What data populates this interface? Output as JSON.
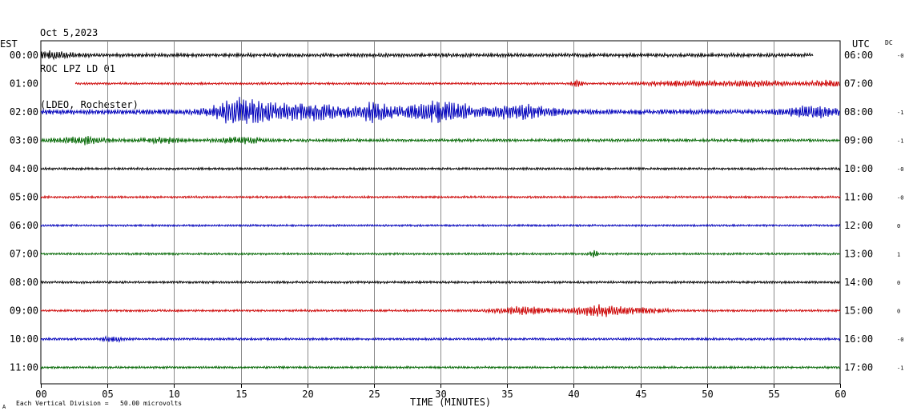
{
  "header": {
    "date": "Oct 5,2023",
    "station": "ROC LPZ LD 01",
    "network": "(LDEO, Rochester)"
  },
  "left_zone_label": "EST",
  "right_zone_label": "UTC",
  "dc_label": "DC",
  "footer": {
    "scale_note": "Each Vertical Division =   50.00 microvolts",
    "corner_mark": "A"
  },
  "chart_data": {
    "type": "line",
    "xlabel": "TIME (MINUTES)",
    "xlim": [
      0,
      60
    ],
    "x_ticks": [
      "00",
      "05",
      "10",
      "15",
      "20",
      "25",
      "30",
      "35",
      "40",
      "45",
      "50",
      "55",
      "60"
    ],
    "trace_colors": [
      "#000000",
      "#cc0000",
      "#0000bb",
      "#006600"
    ],
    "rows": [
      {
        "est": "00:00",
        "utc": "06:00",
        "dc": "-0",
        "start": 0,
        "end": 58,
        "amp": 2.5,
        "events": [
          {
            "at": 0.3,
            "width": 2,
            "amp": 4
          }
        ]
      },
      {
        "est": "01:00",
        "utc": "07:00",
        "dc": "",
        "start": 2.6,
        "end": 60,
        "amp": 1.5,
        "events": [
          {
            "at": 40.2,
            "width": 0.4,
            "amp": 5
          },
          {
            "at": 48.5,
            "width": 3,
            "amp": 3
          },
          {
            "at": 54,
            "width": 2.5,
            "amp": 3
          },
          {
            "at": 59,
            "width": 1.5,
            "amp": 3.5
          }
        ]
      },
      {
        "est": "02:00",
        "utc": "08:00",
        "dc": "-1",
        "start": 0,
        "end": 60,
        "amp": 3.5,
        "events": [
          {
            "at": 15,
            "width": 2,
            "amp": 15
          },
          {
            "at": 20,
            "width": 3.5,
            "amp": 9
          },
          {
            "at": 25.2,
            "width": 1.2,
            "amp": 11
          },
          {
            "at": 30,
            "width": 2.5,
            "amp": 12
          },
          {
            "at": 36,
            "width": 2.5,
            "amp": 8
          },
          {
            "at": 58,
            "width": 2,
            "amp": 6
          }
        ]
      },
      {
        "est": "03:00",
        "utc": "09:00",
        "dc": "-1",
        "start": 0,
        "end": 60,
        "amp": 2,
        "events": [
          {
            "at": 3,
            "width": 2,
            "amp": 4.5
          },
          {
            "at": 9,
            "width": 1.5,
            "amp": 3
          },
          {
            "at": 15,
            "width": 2,
            "amp": 3
          }
        ]
      },
      {
        "est": "04:00",
        "utc": "10:00",
        "dc": "-0",
        "start": 0,
        "end": 60,
        "amp": 1.6,
        "events": []
      },
      {
        "est": "05:00",
        "utc": "11:00",
        "dc": "-0",
        "start": 0,
        "end": 60,
        "amp": 1.5,
        "events": []
      },
      {
        "est": "06:00",
        "utc": "12:00",
        "dc": "0",
        "start": 0,
        "end": 60,
        "amp": 1.4,
        "events": []
      },
      {
        "est": "07:00",
        "utc": "13:00",
        "dc": "1",
        "start": 0,
        "end": 60,
        "amp": 1.5,
        "events": [
          {
            "at": 41.5,
            "width": 0.3,
            "amp": 4
          }
        ]
      },
      {
        "est": "08:00",
        "utc": "14:00",
        "dc": "0",
        "start": 0,
        "end": 60,
        "amp": 1.6,
        "events": []
      },
      {
        "est": "09:00",
        "utc": "15:00",
        "dc": "0",
        "start": 0,
        "end": 60,
        "amp": 1.5,
        "events": [
          {
            "at": 36,
            "width": 2,
            "amp": 4.5
          },
          {
            "at": 41.8,
            "width": 2,
            "amp": 7
          },
          {
            "at": 45,
            "width": 2,
            "amp": 3
          }
        ]
      },
      {
        "est": "10:00",
        "utc": "16:00",
        "dc": "-0",
        "start": 0,
        "end": 60,
        "amp": 1.6,
        "events": [
          {
            "at": 5.5,
            "width": 0.8,
            "amp": 3
          }
        ]
      },
      {
        "est": "11:00",
        "utc": "17:00",
        "dc": "-1",
        "start": 0,
        "end": 60,
        "amp": 1.5,
        "events": []
      }
    ]
  }
}
